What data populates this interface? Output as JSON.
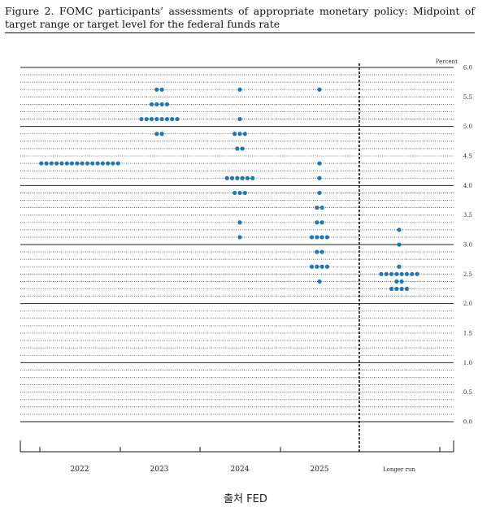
{
  "figure": {
    "title": "Figure 2.  FOMC participants’ assessments of appropriate monetary policy:  Midpoint of target range or target level for the federal funds rate",
    "source": "출처 FED"
  },
  "chart_data": {
    "type": "scatter",
    "title": "Figure 2.  FOMC participants’ assessments of appropriate monetary policy:  Midpoint of target range or target level for the federal funds rate",
    "ylabel": "Percent",
    "ylim": [
      0,
      6.0
    ],
    "y_ticks": [
      "0.0",
      "0.5",
      "1.0",
      "1.5",
      "2.0",
      "2.5",
      "3.0",
      "3.5",
      "4.0",
      "4.5",
      "5.0",
      "5.5",
      "6.0"
    ],
    "categories": [
      "2022",
      "2023",
      "2024",
      "2025",
      "Longer run"
    ],
    "dot_color": "#1f77b4",
    "grid": "dotted at every 0.125 percent, solid at whole percents",
    "divider": "dashed vertical line before Longer run",
    "dots": [
      {
        "category": "2022",
        "y": 4.375,
        "count": 16
      },
      {
        "category": "2023",
        "y": 5.625,
        "count": 2
      },
      {
        "category": "2023",
        "y": 5.375,
        "count": 4
      },
      {
        "category": "2023",
        "y": 5.125,
        "count": 8
      },
      {
        "category": "2023",
        "y": 4.875,
        "count": 2
      },
      {
        "category": "2024",
        "y": 5.625,
        "count": 1
      },
      {
        "category": "2024",
        "y": 5.125,
        "count": 1
      },
      {
        "category": "2024",
        "y": 4.875,
        "count": 3
      },
      {
        "category": "2024",
        "y": 4.625,
        "count": 2
      },
      {
        "category": "2024",
        "y": 4.125,
        "count": 6
      },
      {
        "category": "2024",
        "y": 3.875,
        "count": 3
      },
      {
        "category": "2024",
        "y": 3.375,
        "count": 1
      },
      {
        "category": "2024",
        "y": 3.125,
        "count": 1
      },
      {
        "category": "2025",
        "y": 5.625,
        "count": 1
      },
      {
        "category": "2025",
        "y": 4.375,
        "count": 1
      },
      {
        "category": "2025",
        "y": 4.125,
        "count": 1
      },
      {
        "category": "2025",
        "y": 3.875,
        "count": 1
      },
      {
        "category": "2025",
        "y": 3.625,
        "count": 2
      },
      {
        "category": "2025",
        "y": 3.375,
        "count": 2
      },
      {
        "category": "2025",
        "y": 3.125,
        "count": 4
      },
      {
        "category": "2025",
        "y": 2.875,
        "count": 2
      },
      {
        "category": "2025",
        "y": 2.625,
        "count": 4
      },
      {
        "category": "2025",
        "y": 2.375,
        "count": 1
      },
      {
        "category": "Longer run",
        "y": 3.25,
        "count": 1
      },
      {
        "category": "Longer run",
        "y": 3.0,
        "count": 1
      },
      {
        "category": "Longer run",
        "y": 2.625,
        "count": 1
      },
      {
        "category": "Longer run",
        "y": 2.5,
        "count": 8
      },
      {
        "category": "Longer run",
        "y": 2.375,
        "count": 2
      },
      {
        "category": "Longer run",
        "y": 2.25,
        "count": 4
      }
    ]
  }
}
